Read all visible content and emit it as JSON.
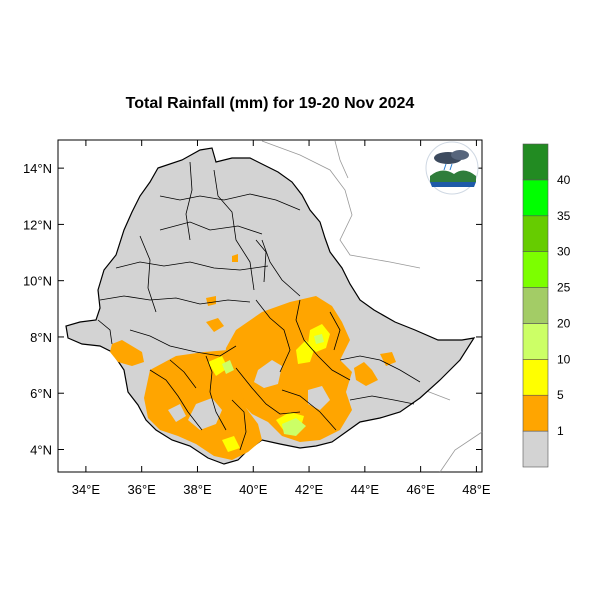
{
  "title": "Total Rainfall (mm) for 19-20 Nov 2024",
  "map": {
    "lon_range": [
      33,
      48.2
    ],
    "lat_range": [
      3.2,
      15
    ],
    "lon_ticks": [
      "34°E",
      "36°E",
      "38°E",
      "40°E",
      "42°E",
      "44°E",
      "46°E",
      "48°E"
    ],
    "lat_ticks": [
      "4°N",
      "6°N",
      "8°N",
      "10°N",
      "12°N",
      "14°N"
    ],
    "country": "Ethiopia"
  },
  "legend": {
    "labels": [
      "1",
      "5",
      "10",
      "20",
      "25",
      "30",
      "35",
      "40"
    ],
    "colors": [
      "#d3d3d3",
      "#ffa500",
      "#ffff00",
      "#ccff66",
      "#a3cc66",
      "#7cff00",
      "#66cc00",
      "#00ff00",
      "#228b22"
    ]
  },
  "colors": {
    "land": "#d3d3d3",
    "rain_1_5": "#ffa500",
    "rain_5_10": "#ffff00",
    "rain_10_20": "#ccff66",
    "boundary": "#000000"
  },
  "logo": {
    "icon": "agency-logo-icon"
  }
}
